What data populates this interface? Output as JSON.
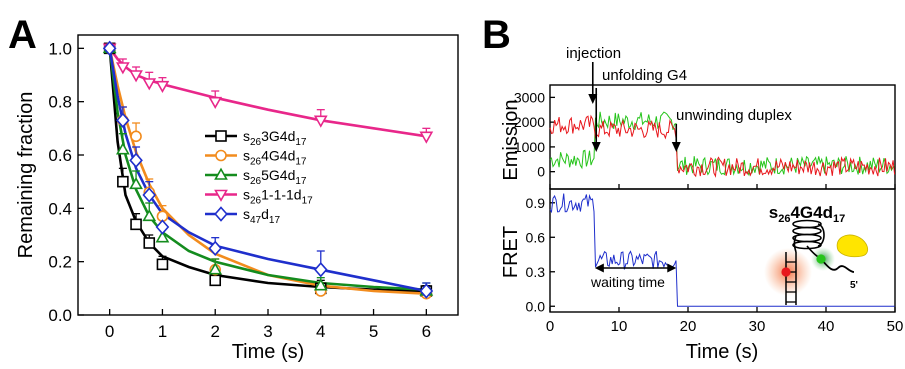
{
  "panels": {
    "A": "A",
    "B": "B"
  },
  "chart_data": [
    {
      "type": "scatter",
      "panel": "A",
      "xlabel": "Time (s)",
      "ylabel": "Remaining fraction",
      "xlim": [
        -0.6,
        6.6
      ],
      "ylim": [
        0.0,
        1.05
      ],
      "xticks": [
        0,
        1,
        2,
        3,
        4,
        5,
        6
      ],
      "yticks": [
        0.0,
        0.2,
        0.4,
        0.6,
        0.8,
        1.0
      ],
      "xtick_labels": [
        "0",
        "1",
        "2",
        "3",
        "4",
        "5",
        "6"
      ],
      "ytick_labels": [
        "0.0",
        "0.2",
        "0.4",
        "0.6",
        "0.8",
        "1.0"
      ],
      "legend_position": "center-right",
      "series": [
        {
          "name": "s263G4d17",
          "label": {
            "base": "s",
            "sub1": "26",
            "mid": "3G4d",
            "sub2": "17"
          },
          "color": "#000000",
          "marker": "square",
          "x": [
            0,
            0.25,
            0.5,
            0.75,
            1,
            2,
            4,
            6
          ],
          "y": [
            1.0,
            0.5,
            0.34,
            0.27,
            0.19,
            0.13,
            0.1,
            0.09
          ],
          "err": [
            0,
            0.05,
            0.04,
            0.03,
            0.03,
            0.04,
            0.03,
            0.02
          ],
          "fit": [
            [
              0,
              1.0
            ],
            [
              0.15,
              0.65
            ],
            [
              0.3,
              0.45
            ],
            [
              0.5,
              0.35
            ],
            [
              0.75,
              0.27
            ],
            [
              1,
              0.22
            ],
            [
              1.5,
              0.18
            ],
            [
              2,
              0.15
            ],
            [
              3,
              0.12
            ],
            [
              4,
              0.105
            ],
            [
              5,
              0.095
            ],
            [
              6,
              0.088
            ]
          ]
        },
        {
          "name": "s264G4d17",
          "label": {
            "base": "s",
            "sub1": "26",
            "mid": "4G4d",
            "sub2": "17"
          },
          "color": "#f28c1e",
          "marker": "circle",
          "x": [
            0,
            0.25,
            0.5,
            0.75,
            1,
            2,
            4,
            6
          ],
          "y": [
            1.0,
            0.73,
            0.67,
            0.46,
            0.37,
            0.17,
            0.09,
            0.08
          ],
          "err": [
            0,
            0.05,
            0.05,
            0.05,
            0.04,
            0.04,
            0.03,
            0.02
          ],
          "fit": [
            [
              0,
              1.0
            ],
            [
              0.15,
              0.86
            ],
            [
              0.3,
              0.74
            ],
            [
              0.5,
              0.61
            ],
            [
              0.75,
              0.49
            ],
            [
              1,
              0.4
            ],
            [
              1.5,
              0.3
            ],
            [
              2,
              0.23
            ],
            [
              3,
              0.15
            ],
            [
              4,
              0.11
            ],
            [
              5,
              0.09
            ],
            [
              6,
              0.08
            ]
          ]
        },
        {
          "name": "s265G4d17",
          "label": {
            "base": "s",
            "sub1": "26",
            "mid": "5G4d",
            "sub2": "17"
          },
          "color": "#148c1e",
          "marker": "triangle-up",
          "x": [
            0,
            0.25,
            0.5,
            0.75,
            1,
            2,
            4,
            6
          ],
          "y": [
            1.0,
            0.62,
            0.49,
            0.37,
            0.29,
            0.17,
            0.11,
            0.09
          ],
          "err": [
            0,
            0.06,
            0.05,
            0.05,
            0.04,
            0.04,
            0.03,
            0.03
          ],
          "fit": [
            [
              0,
              1.0
            ],
            [
              0.15,
              0.76
            ],
            [
              0.3,
              0.6
            ],
            [
              0.5,
              0.47
            ],
            [
              0.75,
              0.37
            ],
            [
              1,
              0.31
            ],
            [
              1.5,
              0.24
            ],
            [
              2,
              0.2
            ],
            [
              3,
              0.15
            ],
            [
              4,
              0.12
            ],
            [
              5,
              0.105
            ],
            [
              6,
              0.095
            ]
          ]
        },
        {
          "name": "s261-1-1d17",
          "label": {
            "base": "s",
            "sub1": "26",
            "mid": "1-1-1d",
            "sub2": "17"
          },
          "color": "#e8278a",
          "marker": "triangle-down",
          "x": [
            0,
            0.25,
            0.5,
            0.75,
            1,
            2,
            4,
            6
          ],
          "y": [
            1.0,
            0.93,
            0.9,
            0.87,
            0.86,
            0.8,
            0.73,
            0.67
          ],
          "err": [
            0,
            0.03,
            0.03,
            0.04,
            0.03,
            0.04,
            0.04,
            0.03
          ],
          "fit": [
            [
              0,
              1.0
            ],
            [
              0.15,
              0.96
            ],
            [
              0.3,
              0.93
            ],
            [
              0.5,
              0.9
            ],
            [
              0.75,
              0.88
            ],
            [
              1,
              0.865
            ],
            [
              1.5,
              0.84
            ],
            [
              2,
              0.815
            ],
            [
              3,
              0.77
            ],
            [
              4,
              0.73
            ],
            [
              5,
              0.7
            ],
            [
              6,
              0.67
            ]
          ]
        },
        {
          "name": "s47d17",
          "label": {
            "base": "s",
            "sub1": "47",
            "mid": "d",
            "sub2": "17"
          },
          "color": "#1f2fcc",
          "marker": "diamond",
          "x": [
            0,
            0.25,
            0.5,
            0.75,
            1,
            2,
            4,
            6
          ],
          "y": [
            1.0,
            0.73,
            0.58,
            0.45,
            0.33,
            0.25,
            0.17,
            0.09
          ],
          "err": [
            0,
            0.05,
            0.05,
            0.05,
            0.04,
            0.04,
            0.07,
            0.03
          ],
          "fit": [
            [
              0,
              1.0
            ],
            [
              0.15,
              0.82
            ],
            [
              0.3,
              0.68
            ],
            [
              0.5,
              0.55
            ],
            [
              0.75,
              0.45
            ],
            [
              1,
              0.38
            ],
            [
              1.5,
              0.31
            ],
            [
              2,
              0.26
            ],
            [
              3,
              0.21
            ],
            [
              4,
              0.17
            ],
            [
              5,
              0.13
            ],
            [
              6,
              0.09
            ]
          ]
        }
      ]
    },
    {
      "type": "line",
      "panel": "B",
      "subplot": "emission",
      "ylabel": "Emission",
      "xlim": [
        0,
        50
      ],
      "ylim": [
        -700,
        3500
      ],
      "yticks": [
        0,
        1000,
        2000,
        3000
      ],
      "ytick_labels": [
        "0",
        "1000",
        "2000",
        "3000"
      ],
      "series": [
        {
          "name": "red channel",
          "color": "#e8171c",
          "levels": [
            [
              0,
              6.5,
              1900
            ],
            [
              6.5,
              18.3,
              1700
            ],
            [
              18.3,
              50,
              200
            ]
          ]
        },
        {
          "name": "green channel",
          "color": "#26c41b",
          "levels": [
            [
              0,
              6.5,
              500
            ],
            [
              6.5,
              18.3,
              2050
            ],
            [
              18.3,
              50,
              250
            ]
          ]
        }
      ],
      "annotations": [
        {
          "text": "injection",
          "x": 6.2
        },
        {
          "text": "unfolding G4",
          "x": 6.7
        },
        {
          "text": "unwinding duplex",
          "x": 18.3
        }
      ]
    },
    {
      "type": "line",
      "panel": "B",
      "subplot": "fret",
      "xlabel": "Time (s)",
      "ylabel": "FRET",
      "xlim": [
        0,
        50
      ],
      "ylim": [
        -0.05,
        1.02
      ],
      "xticks": [
        0,
        10,
        20,
        30,
        40,
        50
      ],
      "xtick_labels": [
        "0",
        "10",
        "20",
        "30",
        "40",
        "50"
      ],
      "yticks": [
        0.0,
        0.3,
        0.6,
        0.9
      ],
      "ytick_labels": [
        "0.0",
        "0.3",
        "0.6",
        "0.9"
      ],
      "series": [
        {
          "name": "FRET",
          "color": "#1f2fcc",
          "levels": [
            [
              0,
              6.5,
              0.9
            ],
            [
              6.5,
              18.3,
              0.4
            ],
            [
              18.3,
              50,
              0.0
            ]
          ]
        }
      ],
      "annotations": [
        {
          "text": "waiting time",
          "x_start": 6.5,
          "x_end": 18.3
        }
      ],
      "construct_label": {
        "base": "s",
        "sub1": "26",
        "mid": "4G4d",
        "sub2": "17"
      },
      "strand_label": "5'"
    }
  ]
}
